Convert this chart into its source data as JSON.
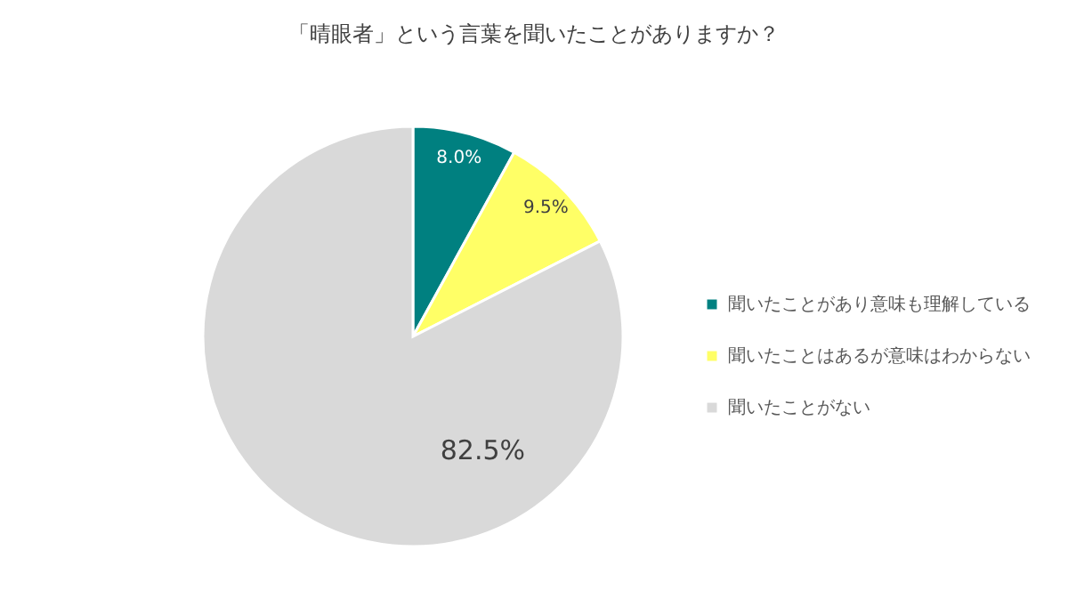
{
  "chart_data": {
    "type": "pie",
    "title": "「晴眼者」という言葉を聞いたことがありますか？",
    "categories": [
      "聞いたことがあり意味も理解している",
      "聞いたことはあるが意味はわからない",
      "聞いたことがない"
    ],
    "values": [
      8.0,
      9.5,
      82.5
    ],
    "colors": [
      "#008080",
      "#ffff66",
      "#d9d9d9"
    ],
    "value_labels": [
      "8.0%",
      "9.5%",
      "82.5%"
    ],
    "legend": "right"
  }
}
